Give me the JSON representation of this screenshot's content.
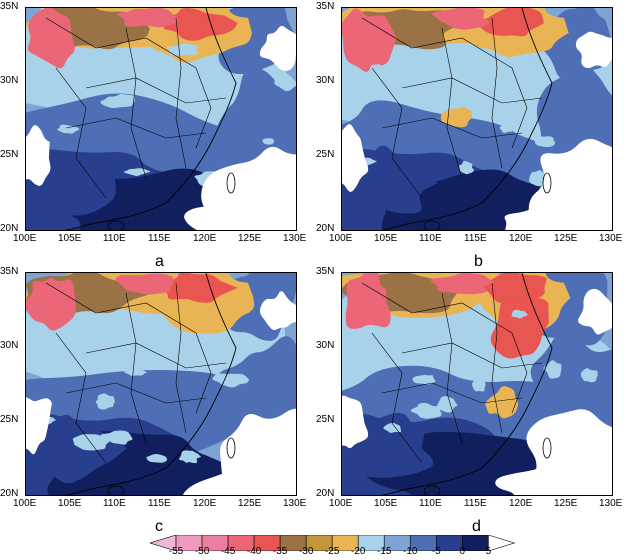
{
  "panels": [
    {
      "label": "a",
      "lon_ticks": [
        "100E",
        "105E",
        "110E",
        "115E",
        "120E",
        "125E",
        "130E"
      ],
      "lat_ticks": [
        "35N",
        "30N",
        "25N",
        "20N"
      ]
    },
    {
      "label": "b",
      "lon_ticks": [
        "100E",
        "105E",
        "110E",
        "115E",
        "120E",
        "125E",
        "130E"
      ],
      "lat_ticks": [
        "35N",
        "30N",
        "25N",
        "20N"
      ]
    },
    {
      "label": "c",
      "lon_ticks": [
        "100E",
        "105E",
        "110E",
        "115E",
        "120E",
        "125E",
        "130E"
      ],
      "lat_ticks": [
        "35N",
        "30N",
        "25N",
        "20N"
      ]
    },
    {
      "label": "d",
      "lon_ticks": [
        "100E",
        "105E",
        "110E",
        "115E",
        "120E",
        "125E",
        "130E"
      ],
      "lat_ticks": [
        "35N",
        "30N",
        "25N",
        "20N"
      ]
    }
  ],
  "colorbar": {
    "ticks": [
      "-55",
      "-50",
      "-45",
      "-40",
      "-35",
      "-30",
      "-25",
      "-20",
      "-15",
      "-10",
      "-5",
      "0",
      "5"
    ],
    "colors": [
      "#f0b7d6",
      "#ee9bbf",
      "#ec7f9f",
      "#eb6677",
      "#e95550",
      "#9a7246",
      "#c4963c",
      "#e9b554",
      "#a7d2ea",
      "#7ea4d3",
      "#4e6fb5",
      "#283f8e",
      "#121f5e"
    ]
  },
  "legend_colors": {
    "dark_navy": "#121f5e",
    "navy": "#283f8e",
    "blue": "#4e6fb5",
    "mid_blue": "#7ea4d3",
    "light_blue": "#a7d2ea",
    "gold": "#e9b554",
    "brown": "#9a7246",
    "red": "#e95550",
    "pink": "#eb6677"
  }
}
